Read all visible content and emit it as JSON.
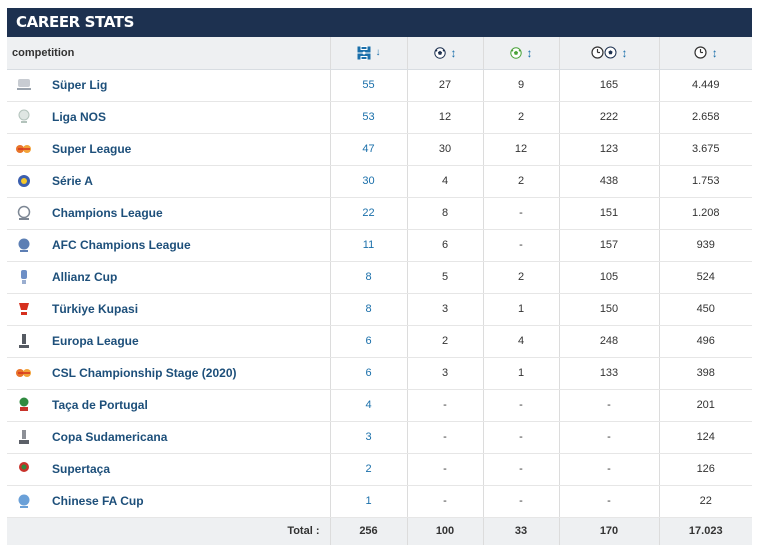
{
  "header": {
    "title": "CAREER STATS"
  },
  "table": {
    "columns": [
      {
        "label": "competition"
      },
      {
        "icon": "appearances-icon",
        "sort": "sorted-desc"
      },
      {
        "icon": "goals-icon",
        "sort": "sortable"
      },
      {
        "icon": "assists-icon",
        "sort": "sortable"
      },
      {
        "icon": "minutes-per-goal-icon",
        "sort": "sortable"
      },
      {
        "icon": "minutes-played-icon",
        "sort": "sortable"
      }
    ],
    "rows": [
      {
        "competition": "Süper Lig",
        "logo": "super-lig-logo",
        "appearances": "55",
        "goals": "27",
        "assists": "9",
        "mins_per_goal": "165",
        "minutes": "4.449"
      },
      {
        "competition": "Liga NOS",
        "logo": "liga-nos-logo",
        "appearances": "53",
        "goals": "12",
        "assists": "2",
        "mins_per_goal": "222",
        "minutes": "2.658"
      },
      {
        "competition": "Super League",
        "logo": "super-league-logo",
        "appearances": "47",
        "goals": "30",
        "assists": "12",
        "mins_per_goal": "123",
        "minutes": "3.675"
      },
      {
        "competition": "Série A",
        "logo": "serie-a-logo",
        "appearances": "30",
        "goals": "4",
        "assists": "2",
        "mins_per_goal": "438",
        "minutes": "1.753"
      },
      {
        "competition": "Champions League",
        "logo": "champions-league-logo",
        "appearances": "22",
        "goals": "8",
        "assists": "-",
        "mins_per_goal": "151",
        "minutes": "1.208"
      },
      {
        "competition": "AFC Champions League",
        "logo": "afc-champions-league-logo",
        "appearances": "11",
        "goals": "6",
        "assists": "-",
        "mins_per_goal": "157",
        "minutes": "939"
      },
      {
        "competition": "Allianz Cup",
        "logo": "allianz-cup-logo",
        "appearances": "8",
        "goals": "5",
        "assists": "2",
        "mins_per_goal": "105",
        "minutes": "524"
      },
      {
        "competition": "Türkiye Kupasi",
        "logo": "turkiye-kupasi-logo",
        "appearances": "8",
        "goals": "3",
        "assists": "1",
        "mins_per_goal": "150",
        "minutes": "450"
      },
      {
        "competition": "Europa League",
        "logo": "europa-league-logo",
        "appearances": "6",
        "goals": "2",
        "assists": "4",
        "mins_per_goal": "248",
        "minutes": "496"
      },
      {
        "competition": "CSL Championship Stage (2020)",
        "logo": "csl-championship-logo",
        "appearances": "6",
        "goals": "3",
        "assists": "1",
        "mins_per_goal": "133",
        "minutes": "398"
      },
      {
        "competition": "Taça de Portugal",
        "logo": "taca-de-portugal-logo",
        "appearances": "4",
        "goals": "-",
        "assists": "-",
        "mins_per_goal": "-",
        "minutes": "201"
      },
      {
        "competition": "Copa Sudamericana",
        "logo": "copa-sudamericana-logo",
        "appearances": "3",
        "goals": "-",
        "assists": "-",
        "mins_per_goal": "-",
        "minutes": "124"
      },
      {
        "competition": "Supertaça",
        "logo": "supertaca-logo",
        "appearances": "2",
        "goals": "-",
        "assists": "-",
        "mins_per_goal": "-",
        "minutes": "126"
      },
      {
        "competition": "Chinese FA Cup",
        "logo": "chinese-fa-cup-logo",
        "appearances": "1",
        "goals": "-",
        "assists": "-",
        "mins_per_goal": "-",
        "minutes": "22"
      }
    ],
    "totals": {
      "label": "Total :",
      "appearances": "256",
      "goals": "100",
      "assists": "33",
      "mins_per_goal": "170",
      "minutes": "17.023"
    }
  },
  "colors": {
    "header_bg": "#1d3150",
    "link": "#1a6faa",
    "comp_name": "#1d4f7a",
    "row_header_bg": "#eef0f2"
  }
}
